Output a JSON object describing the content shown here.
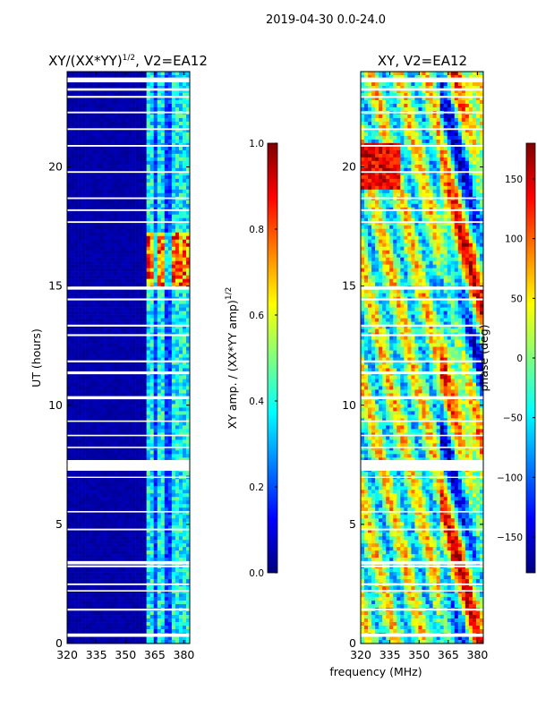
{
  "figure": {
    "suptitle": "2019-04-30 0.0-24.0",
    "xlabel_shared": "frequency (MHz)"
  },
  "colors": {
    "jet": [
      "#00007f",
      "#0000ff",
      "#007fff",
      "#00ffff",
      "#7fff7f",
      "#ffff00",
      "#ff7f00",
      "#ff0000",
      "#7f0000"
    ],
    "gap": "#ffffff",
    "axis": "#000000"
  },
  "chart_data": [
    {
      "type": "heatmap",
      "title": "XY/(XX*YY)^1/2, V2=EA12",
      "title_base": "XY/(XX*YY)",
      "title_sup": "1/2",
      "title_tail": ", V2=EA12",
      "xlabel": "",
      "ylabel": "UT (hours)",
      "x_range": [
        320,
        383
      ],
      "y_range": [
        0,
        24
      ],
      "x_ticks": [
        320,
        335,
        350,
        365,
        380
      ],
      "y_ticks": [
        0,
        5,
        10,
        15,
        20
      ],
      "colorbar": {
        "label": "XY amp. / (XX*YY amp)^1/2",
        "label_base": "XY amp. / (XX*YY amp)",
        "label_sup": "1/2",
        "range": [
          0.0,
          1.0
        ],
        "ticks": [
          0.0,
          0.2,
          0.4,
          0.6,
          0.8,
          1.0
        ],
        "tick_labels": [
          "0.0",
          "0.2",
          "0.4",
          "0.6",
          "0.8",
          "1.0"
        ]
      },
      "signal_band_mhz": [
        360,
        383
      ],
      "strong_interval_hours": [
        14.8,
        17.2
      ]
    },
    {
      "type": "heatmap",
      "title": "XY, V2=EA12",
      "xlabel": "frequency (MHz)",
      "ylabel": "",
      "x_range": [
        320,
        383
      ],
      "y_range": [
        0,
        24
      ],
      "x_ticks": [
        320,
        335,
        350,
        365,
        380
      ],
      "y_ticks": [
        0,
        5,
        10,
        15,
        20
      ],
      "colorbar": {
        "label": "phase (deg)",
        "range": [
          -180,
          180
        ],
        "ticks": [
          -150,
          -100,
          -50,
          0,
          50,
          100,
          150
        ],
        "tick_labels": [
          "−150",
          "−100",
          "−50",
          "0",
          "50",
          "100",
          "150"
        ]
      }
    }
  ],
  "gaps_hours": [
    [
      0.28,
      0.42
    ],
    [
      1.38,
      1.46
    ],
    [
      2.18,
      2.24
    ],
    [
      2.45,
      2.52
    ],
    [
      3.2,
      3.28
    ],
    [
      3.32,
      3.46
    ],
    [
      4.75,
      4.82
    ],
    [
      5.5,
      5.56
    ],
    [
      6.95,
      7.0
    ],
    [
      7.25,
      7.7
    ],
    [
      8.2,
      8.26
    ],
    [
      8.7,
      8.76
    ],
    [
      9.3,
      9.36
    ],
    [
      10.25,
      10.38
    ],
    [
      11.3,
      11.42
    ],
    [
      11.8,
      11.88
    ],
    [
      12.9,
      12.98
    ],
    [
      13.3,
      13.38
    ],
    [
      14.4,
      14.48
    ],
    [
      14.85,
      14.98
    ],
    [
      17.65,
      17.72
    ],
    [
      18.15,
      18.22
    ],
    [
      18.65,
      18.72
    ],
    [
      19.75,
      19.82
    ],
    [
      20.85,
      20.92
    ],
    [
      21.55,
      21.62
    ],
    [
      22.25,
      22.32
    ],
    [
      22.9,
      22.98
    ],
    [
      23.2,
      23.3
    ],
    [
      23.55,
      23.75
    ]
  ]
}
